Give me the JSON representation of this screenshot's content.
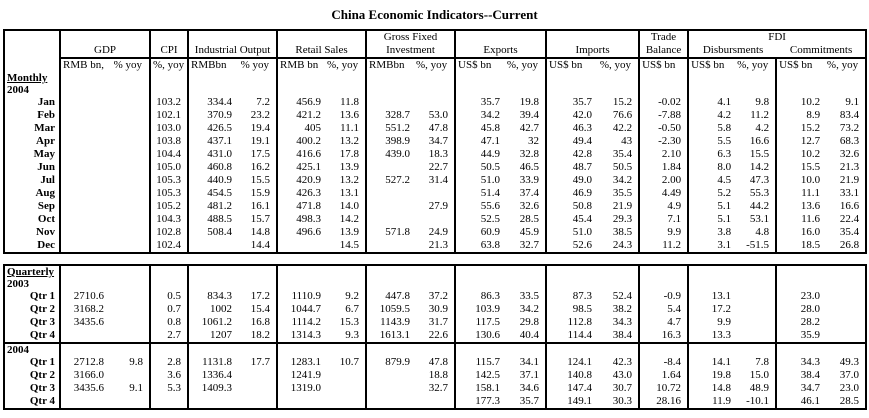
{
  "title": "China Economic Indicators--Current",
  "header": {
    "gdp": {
      "name": "GDP",
      "u1": "RMB bn,",
      "u2": "% yoy"
    },
    "cpi": {
      "name": "CPI",
      "u1": "%, yoy"
    },
    "io": {
      "name": "Industrial Output",
      "u1": "RMBbn",
      "u2": "% yoy"
    },
    "rs": {
      "name": "Retail Sales",
      "u1": "RMB bn",
      "u2": "%, yoy"
    },
    "gfi": {
      "name1": "Gross Fixed",
      "name2": "Investment",
      "u1": "RMBbn",
      "u2": "%, yoy"
    },
    "exports": {
      "name": "Exports",
      "u1": "US$ bn",
      "u2": "%, yoy"
    },
    "imports": {
      "name": "Imports",
      "u1": "US$ bn",
      "u2": "%, yoy"
    },
    "tb": {
      "name1": "Trade",
      "name2": "Balance",
      "u1": "US$ bn"
    },
    "fdi": {
      "name": "FDI",
      "disb": "Disbursments",
      "commit": "Commitments",
      "u1": "US$ bn",
      "u2": "%, yoy",
      "u3": "US$ bn",
      "u4": "%, yoy"
    }
  },
  "monthly": {
    "rows": [
      {
        "type": "section",
        "label": "Monthly"
      },
      {
        "type": "year",
        "label": "2004"
      },
      {
        "type": "data",
        "label": "Jan",
        "v": [
          "",
          "",
          "103.2",
          "334.4",
          "7.2",
          "456.9",
          "11.8",
          "",
          "",
          "35.7",
          "19.8",
          "35.7",
          "15.2",
          "-0.02",
          "4.1",
          "9.8",
          "10.2",
          "9.1"
        ]
      },
      {
        "type": "data",
        "label": "Feb",
        "v": [
          "",
          "",
          "102.1",
          "370.9",
          "23.2",
          "421.2",
          "13.6",
          "328.7",
          "53.0",
          "34.2",
          "39.4",
          "42.0",
          "76.6",
          "-7.88",
          "4.2",
          "11.2",
          "8.9",
          "83.4"
        ]
      },
      {
        "type": "data",
        "label": "Mar",
        "v": [
          "",
          "",
          "103.0",
          "426.5",
          "19.4",
          "405",
          "11.1",
          "551.2",
          "47.8",
          "45.8",
          "42.7",
          "46.3",
          "42.2",
          "-0.50",
          "5.8",
          "4.2",
          "15.2",
          "73.2"
        ]
      },
      {
        "type": "data",
        "label": "Apr",
        "v": [
          "",
          "",
          "103.8",
          "437.1",
          "19.1",
          "400.2",
          "13.2",
          "398.9",
          "34.7",
          "47.1",
          "32",
          "49.4",
          "43",
          "-2.30",
          "5.5",
          "16.6",
          "12.7",
          "68.3"
        ]
      },
      {
        "type": "data",
        "label": "May",
        "v": [
          "",
          "",
          "104.4",
          "431.0",
          "17.5",
          "416.6",
          "17.8",
          "439.0",
          "18.3",
          "44.9",
          "32.8",
          "42.8",
          "35.4",
          "2.10",
          "6.3",
          "15.5",
          "10.2",
          "32.6"
        ]
      },
      {
        "type": "data",
        "label": "Jun",
        "v": [
          "",
          "",
          "105.0",
          "460.8",
          "16.2",
          "425.1",
          "13.9",
          "",
          "22.7",
          "50.5",
          "46.5",
          "48.7",
          "50.5",
          "1.84",
          "8.0",
          "14.2",
          "15.5",
          "21.3"
        ]
      },
      {
        "type": "data",
        "label": "Jul",
        "v": [
          "",
          "",
          "105.3",
          "440.9",
          "15.5",
          "420.9",
          "13.2",
          "527.2",
          "31.4",
          "51.0",
          "33.9",
          "49.0",
          "34.2",
          "2.00",
          "4.5",
          "47.3",
          "10.0",
          "21.9"
        ]
      },
      {
        "type": "data",
        "label": "Aug",
        "v": [
          "",
          "",
          "105.3",
          "454.5",
          "15.9",
          "426.3",
          "13.1",
          "",
          "",
          "51.4",
          "37.4",
          "46.9",
          "35.5",
          "4.49",
          "5.2",
          "55.3",
          "11.1",
          "33.1"
        ]
      },
      {
        "type": "data",
        "label": "Sep",
        "v": [
          "",
          "",
          "105.2",
          "481.2",
          "16.1",
          "471.8",
          "14.0",
          "",
          "27.9",
          "55.6",
          "32.6",
          "50.8",
          "21.9",
          "4.9",
          "5.1",
          "44.2",
          "13.6",
          "16.6"
        ]
      },
      {
        "type": "data",
        "label": "Oct",
        "v": [
          "",
          "",
          "104.3",
          "488.5",
          "15.7",
          "498.3",
          "14.2",
          "",
          "",
          "52.5",
          "28.5",
          "45.4",
          "29.3",
          "7.1",
          "5.1",
          "53.1",
          "11.6",
          "22.4"
        ]
      },
      {
        "type": "data",
        "label": "Nov",
        "v": [
          "",
          "",
          "102.8",
          "508.4",
          "14.8",
          "496.6",
          "13.9",
          "571.8",
          "24.9",
          "60.9",
          "45.9",
          "51.0",
          "38.5",
          "9.9",
          "3.8",
          "4.8",
          "16.0",
          "35.4"
        ]
      },
      {
        "type": "data",
        "label": "Dec",
        "v": [
          "",
          "",
          "102.4",
          "",
          "14.4",
          "",
          "14.5",
          "",
          "21.3",
          "63.8",
          "32.7",
          "52.6",
          "24.3",
          "11.2",
          "3.1",
          "-51.5",
          "18.5",
          "26.8"
        ]
      }
    ]
  },
  "quarterly": {
    "rows": [
      {
        "type": "section",
        "label": "Quarterly"
      },
      {
        "type": "year",
        "label": "2003"
      },
      {
        "type": "data",
        "label": "Qtr 1",
        "v": [
          "2710.6",
          "",
          "0.5",
          "834.3",
          "17.2",
          "1110.9",
          "9.2",
          "447.8",
          "37.2",
          "86.3",
          "33.5",
          "87.3",
          "52.4",
          "-0.9",
          "13.1",
          "",
          "23.0",
          ""
        ]
      },
      {
        "type": "data",
        "label": "Qtr 2",
        "v": [
          "3168.2",
          "",
          "0.7",
          "1002",
          "15.4",
          "1044.7",
          "6.7",
          "1059.5",
          "30.9",
          "103.9",
          "34.2",
          "98.5",
          "38.2",
          "5.4",
          "17.2",
          "",
          "28.0",
          ""
        ]
      },
      {
        "type": "data",
        "label": "Qtr 3",
        "v": [
          "3435.6",
          "",
          "0.8",
          "1061.2",
          "16.8",
          "1114.2",
          "15.3",
          "1143.9",
          "31.7",
          "117.5",
          "29.8",
          "112.8",
          "34.3",
          "4.7",
          "9.9",
          "",
          "28.2",
          ""
        ]
      },
      {
        "type": "data",
        "label": "Qtr 4",
        "v": [
          "",
          "",
          "2.7",
          "1207",
          "18.2",
          "1314.3",
          "9.3",
          "1613.1",
          "22.6",
          "130.6",
          "40.4",
          "114.4",
          "38.4",
          "16.3",
          "13.3",
          "",
          "35.9",
          ""
        ]
      },
      {
        "type": "year",
        "label": "2004",
        "divider": true
      },
      {
        "type": "data",
        "label": "Qtr 1",
        "v": [
          "2712.8",
          "9.8",
          "2.8",
          "1131.8",
          "17.7",
          "1283.1",
          "10.7",
          "879.9",
          "47.8",
          "115.7",
          "34.1",
          "124.1",
          "42.3",
          "-8.4",
          "14.1",
          "7.8",
          "34.3",
          "49.3"
        ]
      },
      {
        "type": "data",
        "label": "Qtr 2",
        "v": [
          "3166.0",
          "",
          "3.6",
          "1336.4",
          "",
          "1241.9",
          "",
          "",
          "18.8",
          "142.5",
          "37.1",
          "140.8",
          "43.0",
          "1.64",
          "19.8",
          "15.0",
          "38.4",
          "37.0"
        ]
      },
      {
        "type": "data",
        "label": "Qtr 3",
        "v": [
          "3435.6",
          "9.1",
          "5.3",
          "1409.3",
          "",
          "1319.0",
          "",
          "",
          "32.7",
          "158.1",
          "34.6",
          "147.4",
          "30.7",
          "10.72",
          "14.8",
          "48.9",
          "34.7",
          "23.0"
        ]
      },
      {
        "type": "data",
        "label": "Qtr 4",
        "v": [
          "",
          "",
          "",
          "",
          "",
          "",
          "",
          "",
          "",
          "177.3",
          "35.7",
          "149.1",
          "30.3",
          "28.16",
          "11.9",
          "-10.1",
          "46.1",
          "28.5"
        ]
      }
    ]
  }
}
